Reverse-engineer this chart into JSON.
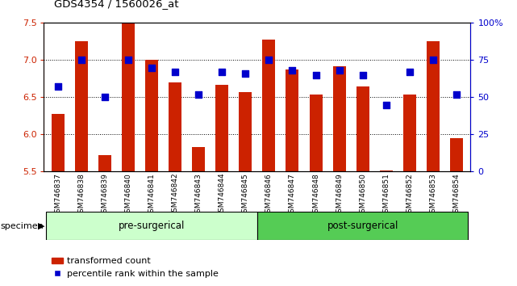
{
  "title": "GDS4354 / 1560026_at",
  "samples": [
    "GSM746837",
    "GSM746838",
    "GSM746839",
    "GSM746840",
    "GSM746841",
    "GSM746842",
    "GSM746843",
    "GSM746844",
    "GSM746845",
    "GSM746846",
    "GSM746847",
    "GSM746848",
    "GSM746849",
    "GSM746850",
    "GSM746851",
    "GSM746852",
    "GSM746853",
    "GSM746854"
  ],
  "bar_values": [
    6.28,
    7.25,
    5.72,
    7.5,
    7.0,
    6.7,
    5.83,
    6.67,
    6.57,
    7.28,
    6.87,
    6.54,
    6.92,
    6.65,
    5.52,
    6.54,
    7.25,
    5.95
  ],
  "percentile_values": [
    57,
    75,
    50,
    75,
    70,
    67,
    52,
    67,
    66,
    75,
    68,
    65,
    68,
    65,
    45,
    67,
    75,
    52
  ],
  "bar_color": "#cc2200",
  "percentile_color": "#0000cc",
  "ylim_left": [
    5.5,
    7.5
  ],
  "ylim_right": [
    0,
    100
  ],
  "yticks_left": [
    5.5,
    6.0,
    6.5,
    7.0,
    7.5
  ],
  "yticks_right": [
    0,
    25,
    50,
    75,
    100
  ],
  "ytick_labels_right": [
    "0",
    "25",
    "50",
    "75",
    "100%"
  ],
  "group_split": 9,
  "group_colors": [
    "#ccffcc",
    "#55cc55"
  ],
  "bg_color": "#ffffff",
  "legend_items": [
    "transformed count",
    "percentile rank within the sample"
  ]
}
